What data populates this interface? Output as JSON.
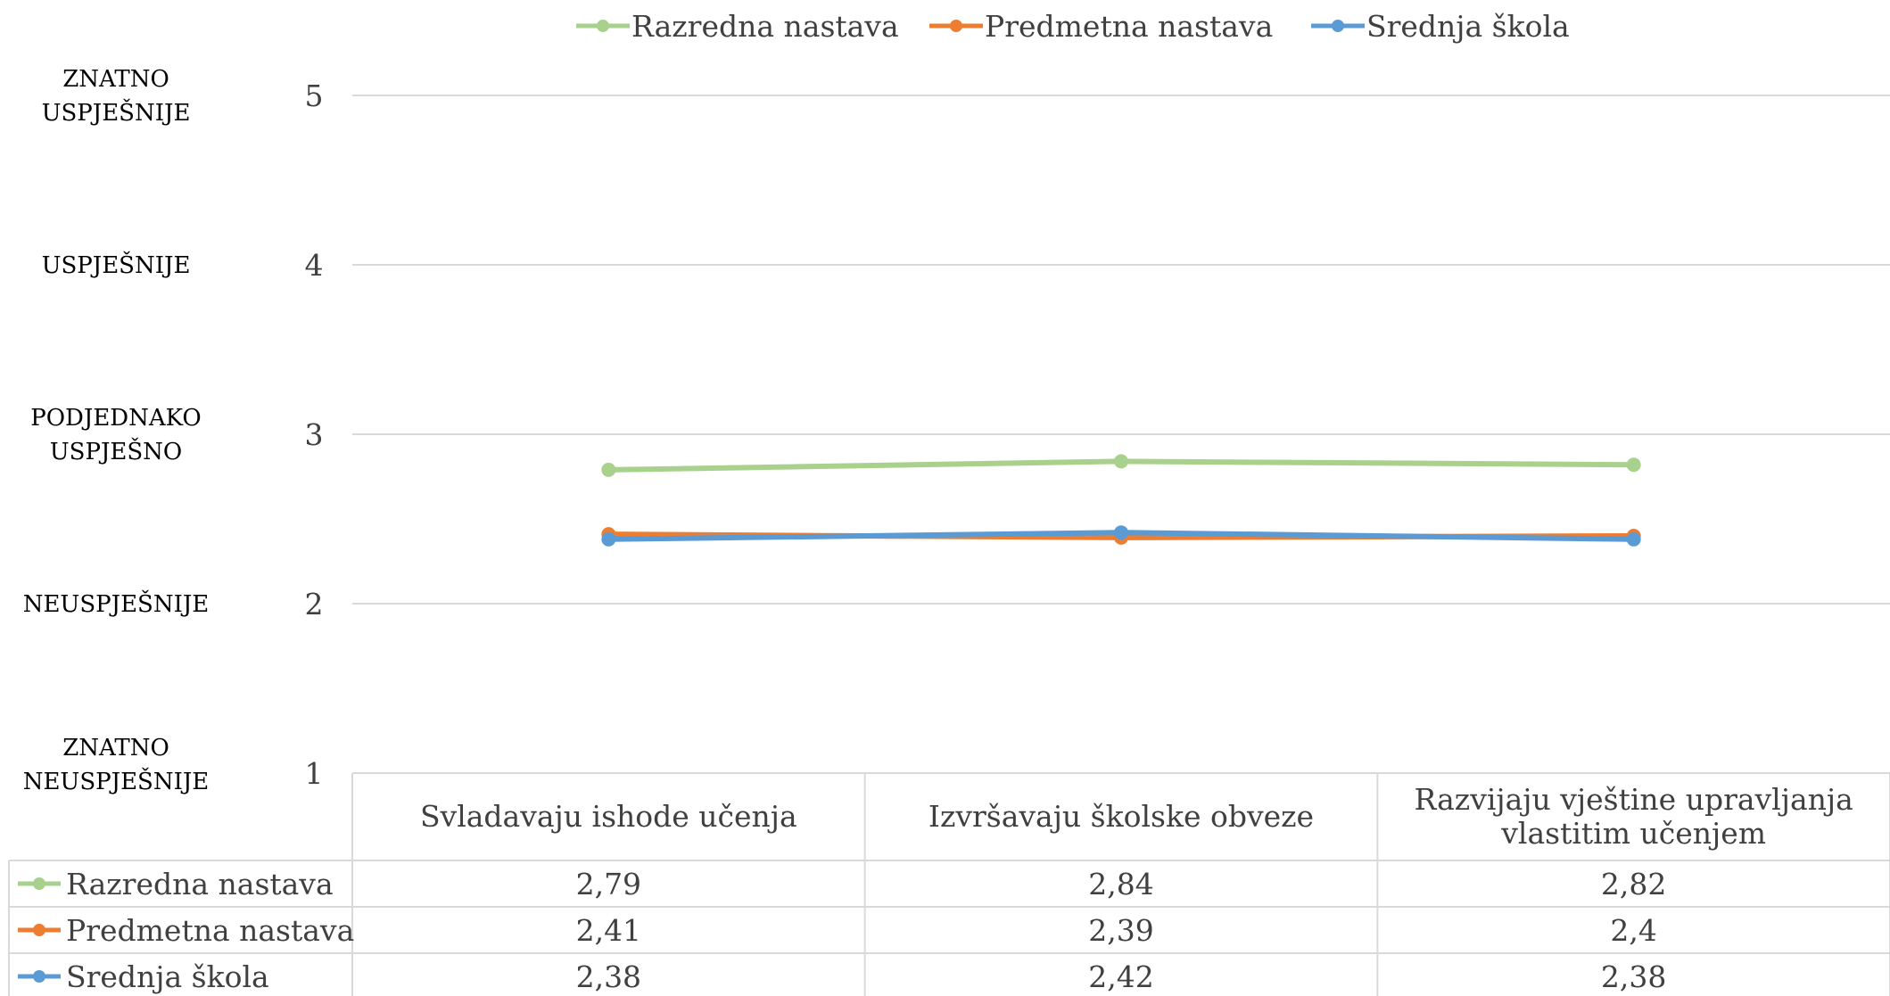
{
  "chart_data": {
    "type": "line",
    "categories": [
      [
        "Svladavaju ishode učenja"
      ],
      [
        "Izvršavaju školske obveze"
      ],
      [
        "Razvijaju vještine upravljanja",
        "vlastitim učenjem"
      ]
    ],
    "series": [
      {
        "name": "Razredna nastava",
        "values": [
          2.79,
          2.84,
          2.82
        ],
        "labels": [
          "2,79",
          "2,84",
          "2,82"
        ],
        "color": "#a9d18e"
      },
      {
        "name": "Predmetna nastava",
        "values": [
          2.41,
          2.39,
          2.4
        ],
        "labels": [
          "2,41",
          "2,39",
          "2,4"
        ],
        "color": "#ed7d31"
      },
      {
        "name": "Srednja škola",
        "values": [
          2.38,
          2.42,
          2.38
        ],
        "labels": [
          "2,38",
          "2,42",
          "2,38"
        ],
        "color": "#5b9bd5"
      }
    ],
    "ylim": [
      1,
      5
    ],
    "yticks": [
      "1",
      "2",
      "3",
      "4",
      "5"
    ],
    "scale_labels": [
      {
        "value": 5,
        "lines": [
          "ZNATNO",
          "USPJEŠNIJE"
        ]
      },
      {
        "value": 4,
        "lines": [
          "USPJEŠNIJE"
        ]
      },
      {
        "value": 3,
        "lines": [
          "PODJEDNAKO",
          "USPJEŠNO"
        ]
      },
      {
        "value": 2,
        "lines": [
          "NEUSPJEŠNIJE"
        ]
      },
      {
        "value": 1,
        "lines": [
          "ZNATNO",
          "NEUSPJEŠNIJE"
        ]
      }
    ],
    "legend_position": "top",
    "data_table": true,
    "grid": true
  }
}
